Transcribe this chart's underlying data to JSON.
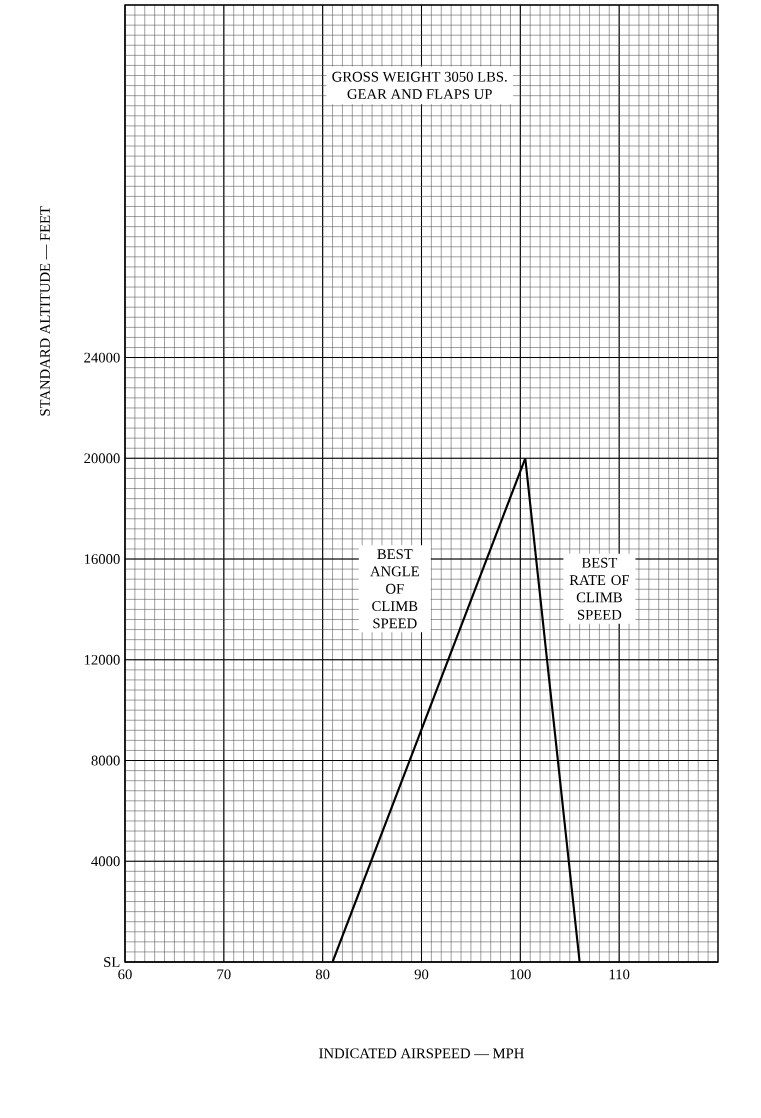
{
  "chart_data": {
    "type": "line",
    "title": "GROSS WEIGHT 3050 LBS.",
    "subtitle": "GEAR AND FLAPS UP",
    "xlabel": "INDICATED AIRSPEED — MPH",
    "ylabel": "STANDARD ALTITUDE — FEET",
    "xlim": [
      60,
      120
    ],
    "ylim": [
      0,
      38000
    ],
    "xticks": [
      60,
      70,
      80,
      90,
      100,
      110
    ],
    "yticks": [
      {
        "value": 0,
        "label": "SL"
      },
      4000,
      8000,
      12000,
      16000,
      20000,
      24000
    ],
    "grid": true,
    "legend": false,
    "marker": "none",
    "line_style": "solid",
    "series": [
      {
        "name": "BEST ANGLE OF CLIMB SPEED",
        "color": "#000000",
        "x": [
          81,
          100.5
        ],
        "values": [
          0,
          20000
        ]
      },
      {
        "name": "BEST RATE OF CLIMB SPEED",
        "color": "#000000",
        "x": [
          100.5,
          106
        ],
        "values": [
          20000,
          0
        ]
      }
    ]
  }
}
